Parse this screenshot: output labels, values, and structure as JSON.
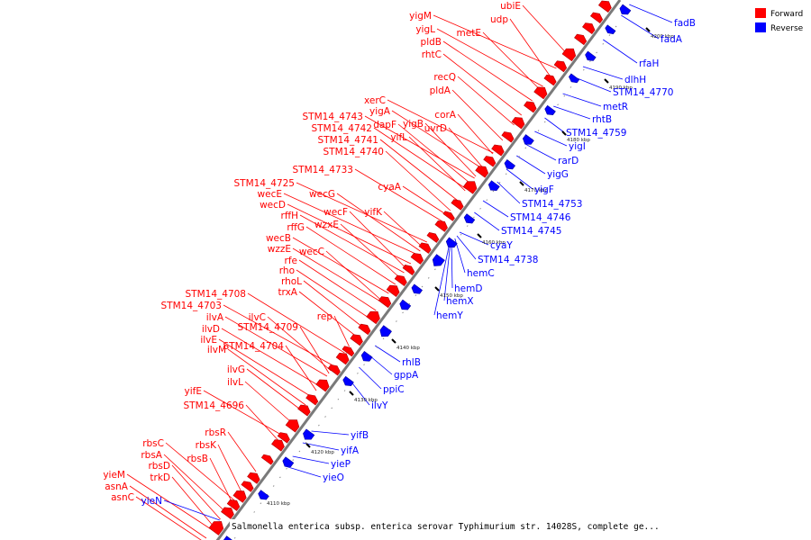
{
  "caption": "Salmonella enterica subsp. enterica serovar Typhimurium str. 14028S, complete ge...",
  "legend": [
    {
      "label": "Forward",
      "color": "#ff0000"
    },
    {
      "label": "Reverse",
      "color": "#0000ff"
    }
  ],
  "axis": {
    "tick_labels": [
      "4110 kbp",
      "4120 kbp",
      "4130 kbp",
      "4140 kbp",
      "4150 kbp",
      "4160 kbp",
      "4170 kbp",
      "4180 kbp",
      "4190 kbp",
      "4200 kbp"
    ]
  },
  "forward_genes": [
    "ubiE",
    "udp",
    "yigM",
    "metE",
    "yigL",
    "pldB",
    "rhtC",
    "recQ",
    "pldA",
    "xerC",
    "yigA",
    "STM14_4743",
    "dapF",
    "yigB",
    "corA",
    "uvrD",
    "STM14_4742",
    "yifL",
    "STM14_4741",
    "STM14_4740",
    "STM14_4733",
    "cyaA",
    "STM14_4725",
    "wecE",
    "wecG",
    "wecD",
    "wecF",
    "yifK",
    "rffH",
    "wzxE",
    "rffG",
    "wecB",
    "wzzE",
    "wecC",
    "rfe",
    "rho",
    "rhoL",
    "trxA",
    "STM14_4708",
    "STM14_4703",
    "ilvC",
    "rep",
    "ilvA",
    "STM14_4709",
    "ilvD",
    "ilvE",
    "STM14_4704",
    "ilvM",
    "ilvG",
    "ilvL",
    "yifE",
    "STM14_4696",
    "rbsR",
    "rbsC",
    "rbsK",
    "rbsA",
    "rbsB",
    "rbsD",
    "trkD",
    "yieM",
    "asnA",
    "asnC"
  ],
  "reverse_genes": [
    "fadB",
    "fadA",
    "rfaH",
    "dlhH",
    "STM14_4770",
    "metR",
    "rhtB",
    "STM14_4759",
    "yigI",
    "rarD",
    "yigG",
    "yigF",
    "STM14_4753",
    "STM14_4746",
    "STM14_4745",
    "cyaY",
    "STM14_4738",
    "hemC",
    "hemD",
    "hemX",
    "hemY",
    "rhlB",
    "gppA",
    "ppiC",
    "ilvY",
    "yifB",
    "yifA",
    "yieP",
    "yieO",
    "yieN"
  ]
}
